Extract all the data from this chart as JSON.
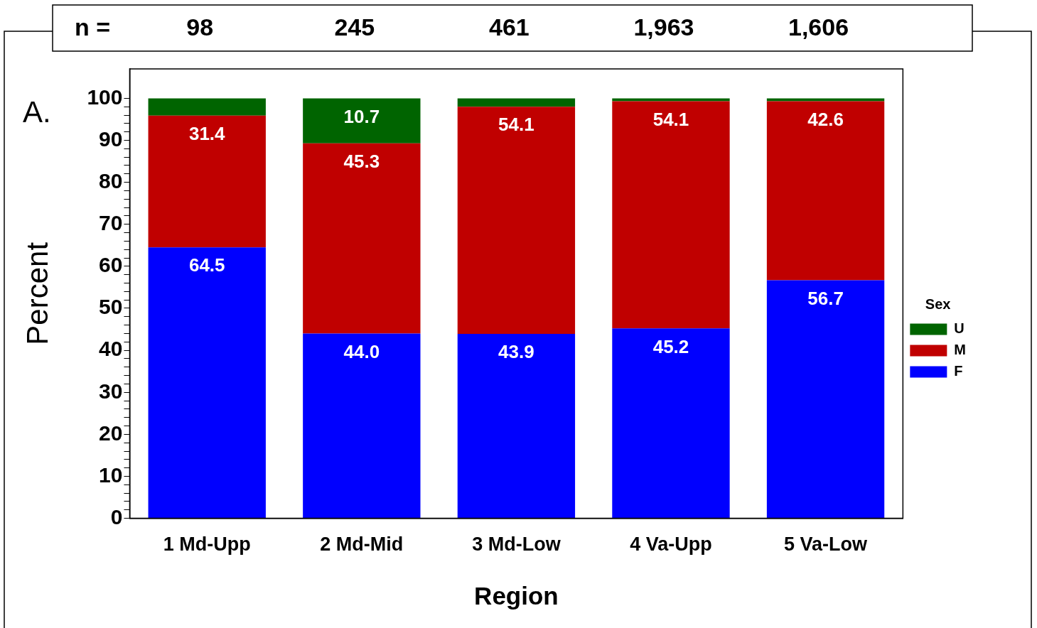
{
  "chart_data": {
    "type": "bar",
    "xlabel": "Region",
    "ylabel": "Percent",
    "legend_title": "Sex",
    "categories": [
      "1 Md-Upp",
      "2 Md-Mid",
      "3 Md-Low",
      "4 Va-Upp",
      "5 Va-Low"
    ],
    "stacked": true,
    "series": [
      {
        "name": "F",
        "color": "#0000ff",
        "values": [
          64.5,
          44.0,
          43.9,
          45.2,
          56.7
        ],
        "value_labels": [
          "64.5",
          "44.0",
          "43.9",
          "45.2",
          "56.7"
        ]
      },
      {
        "name": "M",
        "color": "#c00000",
        "values": [
          31.4,
          45.3,
          54.1,
          54.1,
          42.6
        ],
        "value_labels": [
          "31.4",
          "45.3",
          "54.1",
          "54.1",
          "42.6"
        ]
      },
      {
        "name": "U",
        "color": "#006400",
        "values": [
          4.1,
          10.7,
          2.0,
          0.7,
          0.7
        ],
        "value_labels": [
          null,
          "10.7",
          null,
          null,
          null
        ]
      }
    ],
    "ylim": [
      0,
      107
    ],
    "yticks": [
      0,
      {
        "value": 2,
        "label": null
      },
      {
        "value": 4,
        "label": null
      },
      {
        "value": 6,
        "label": null
      },
      {
        "value": 8,
        "label": null
      },
      10,
      {
        "value": 12,
        "label": null
      },
      {
        "value": 14,
        "label": null
      },
      {
        "value": 16,
        "label": null
      },
      {
        "value": 18,
        "label": null
      },
      20,
      {
        "value": 22,
        "label": null
      },
      {
        "value": 24,
        "label": null
      },
      {
        "value": 26,
        "label": null
      },
      {
        "value": 28,
        "label": null
      },
      30,
      {
        "value": 32,
        "label": null
      },
      {
        "value": 34,
        "label": null
      },
      {
        "value": 36,
        "label": null
      },
      {
        "value": 38,
        "label": null
      },
      40,
      {
        "value": 42,
        "label": null
      },
      {
        "value": 44,
        "label": null
      },
      {
        "value": 46,
        "label": null
      },
      {
        "value": 48,
        "label": null
      },
      50,
      {
        "value": 52,
        "label": null
      },
      {
        "value": 54,
        "label": null
      },
      {
        "value": 56,
        "label": null
      },
      {
        "value": 58,
        "label": null
      },
      60,
      {
        "value": 62,
        "label": null
      },
      {
        "value": 64,
        "label": null
      },
      {
        "value": 66,
        "label": null
      },
      {
        "value": 68,
        "label": null
      },
      70,
      {
        "value": 72,
        "label": null
      },
      {
        "value": 74,
        "label": null
      },
      {
        "value": 76,
        "label": null
      },
      {
        "value": 78,
        "label": null
      },
      80,
      {
        "value": 82,
        "label": null
      },
      {
        "value": 84,
        "label": null
      },
      {
        "value": 86,
        "label": null
      },
      {
        "value": 88,
        "label": null
      },
      90,
      {
        "value": 92,
        "label": null
      },
      {
        "value": 94,
        "label": null
      },
      {
        "value": 96,
        "label": null
      },
      {
        "value": 98,
        "label": null
      },
      100
    ],
    "grid": false,
    "legend": "right",
    "annotations": [
      "n =",
      "A.",
      "98",
      "245",
      "461",
      "1,963",
      "1,606"
    ]
  }
}
